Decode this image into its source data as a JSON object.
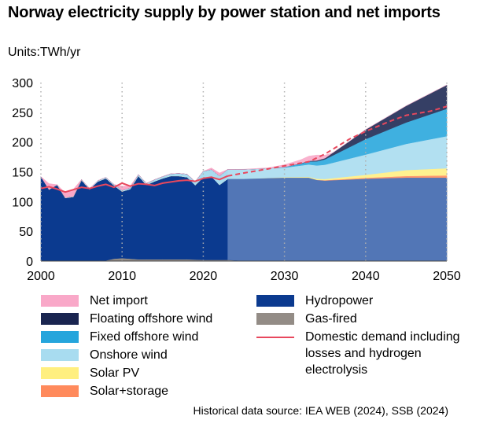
{
  "title": "Norway electricity supply by power station and net imports",
  "units": "Units:TWh/yr",
  "source": "Historical data source: IEA WEB (2024), SSB (2024)",
  "colors": {
    "net_import": "#f9a8c8",
    "floating_offshore_wind": "#1a2550",
    "fixed_offshore_wind": "#25a5dc",
    "onshore_wind": "#a8dcf0",
    "solar_pv": "#ffef80",
    "solar_storage": "#ff8a5c",
    "hydropower": "#0b3a8f",
    "hydropower_forecast": "#3b63ac",
    "gas_fired": "#938c86",
    "demand": "#e8485d",
    "grid": "#b0b0b0"
  },
  "legend": [
    {
      "key": "net_import",
      "label": "Net import"
    },
    {
      "key": "floating_offshore_wind",
      "label": "Floating offshore wind"
    },
    {
      "key": "fixed_offshore_wind",
      "label": "Fixed offshore wind"
    },
    {
      "key": "onshore_wind",
      "label": "Onshore wind"
    },
    {
      "key": "solar_pv",
      "label": "Solar PV"
    },
    {
      "key": "solar_storage",
      "label": "Solar+storage"
    },
    {
      "key": "hydropower",
      "label": "Hydropower"
    },
    {
      "key": "gas_fired",
      "label": "Gas-fired"
    },
    {
      "key": "demand",
      "label": "Domestic demand including losses and hydrogen electrolysis",
      "type": "line"
    }
  ],
  "chart_data": {
    "type": "area",
    "title": "Norway electricity supply by power station and net imports",
    "ylabel": "Units:TWh/yr",
    "xlim": [
      2000,
      2050
    ],
    "ylim": [
      0,
      300
    ],
    "x_ticks": [
      2000,
      2010,
      2020,
      2030,
      2040,
      2050
    ],
    "y_ticks": [
      0,
      50,
      100,
      150,
      200,
      250,
      300
    ],
    "grid": "vertical dotted at 2010, 2020, 2030, 2040",
    "forecast_start": 2023,
    "stacked": true,
    "series": [
      {
        "name": "Gas-fired",
        "key": "gas_fired",
        "points": [
          [
            2000,
            0
          ],
          [
            2005,
            0
          ],
          [
            2008,
            1
          ],
          [
            2009,
            4
          ],
          [
            2010,
            5
          ],
          [
            2011,
            4
          ],
          [
            2012,
            3
          ],
          [
            2015,
            3
          ],
          [
            2018,
            3
          ],
          [
            2020,
            2
          ],
          [
            2023,
            2
          ],
          [
            2024,
            1
          ],
          [
            2025,
            0
          ],
          [
            2050,
            0
          ]
        ]
      },
      {
        "name": "Hydropower",
        "key": "hydropower",
        "points": [
          [
            2000,
            142
          ],
          [
            2001,
            120
          ],
          [
            2002,
            128
          ],
          [
            2003,
            106
          ],
          [
            2004,
            108
          ],
          [
            2005,
            136
          ],
          [
            2006,
            120
          ],
          [
            2007,
            133
          ],
          [
            2008,
            138
          ],
          [
            2009,
            123
          ],
          [
            2010,
            112
          ],
          [
            2011,
            117
          ],
          [
            2012,
            140
          ],
          [
            2013,
            125
          ],
          [
            2014,
            131
          ],
          [
            2015,
            136
          ],
          [
            2016,
            140
          ],
          [
            2017,
            140
          ],
          [
            2018,
            138
          ],
          [
            2019,
            125
          ],
          [
            2020,
            139
          ],
          [
            2021,
            140
          ],
          [
            2022,
            126
          ],
          [
            2023,
            136
          ],
          [
            2025,
            138
          ],
          [
            2030,
            140
          ],
          [
            2033,
            140
          ],
          [
            2034,
            136
          ],
          [
            2035,
            135
          ],
          [
            2040,
            138
          ],
          [
            2045,
            140
          ],
          [
            2050,
            140
          ]
        ]
      },
      {
        "name": "Solar+storage",
        "key": "solar_storage",
        "points": [
          [
            2000,
            0
          ],
          [
            2023,
            0
          ],
          [
            2030,
            0
          ],
          [
            2033,
            0
          ],
          [
            2035,
            1
          ],
          [
            2040,
            2
          ],
          [
            2045,
            3
          ],
          [
            2050,
            4
          ]
        ]
      },
      {
        "name": "Solar PV",
        "key": "solar_pv",
        "points": [
          [
            2000,
            0
          ],
          [
            2023,
            0
          ],
          [
            2025,
            0
          ],
          [
            2030,
            1
          ],
          [
            2035,
            2
          ],
          [
            2040,
            5
          ],
          [
            2045,
            10
          ],
          [
            2050,
            12
          ]
        ]
      },
      {
        "name": "Onshore wind",
        "key": "onshore_wind",
        "points": [
          [
            2000,
            0
          ],
          [
            2005,
            1
          ],
          [
            2010,
            2
          ],
          [
            2015,
            3
          ],
          [
            2018,
            5
          ],
          [
            2019,
            6
          ],
          [
            2020,
            10
          ],
          [
            2021,
            12
          ],
          [
            2022,
            15
          ],
          [
            2023,
            16
          ],
          [
            2025,
            16
          ],
          [
            2030,
            16
          ],
          [
            2035,
            24
          ],
          [
            2040,
            34
          ],
          [
            2045,
            44
          ],
          [
            2050,
            54
          ]
        ]
      },
      {
        "name": "Fixed offshore wind",
        "key": "fixed_offshore_wind",
        "points": [
          [
            2000,
            0
          ],
          [
            2028,
            0
          ],
          [
            2030,
            1
          ],
          [
            2032,
            3
          ],
          [
            2035,
            9
          ],
          [
            2040,
            26
          ],
          [
            2045,
            36
          ],
          [
            2050,
            46
          ]
        ]
      },
      {
        "name": "Floating offshore wind",
        "key": "floating_offshore_wind",
        "points": [
          [
            2000,
            0
          ],
          [
            2030,
            0
          ],
          [
            2033,
            1
          ],
          [
            2035,
            2
          ],
          [
            2038,
            10
          ],
          [
            2040,
            16
          ],
          [
            2045,
            28
          ],
          [
            2050,
            40
          ]
        ]
      },
      {
        "name": "Net import",
        "key": "net_import",
        "points": [
          [
            2000,
            0
          ],
          [
            2001,
            10
          ],
          [
            2002,
            0
          ],
          [
            2003,
            8
          ],
          [
            2004,
            12
          ],
          [
            2005,
            0
          ],
          [
            2006,
            1
          ],
          [
            2007,
            0
          ],
          [
            2009,
            0
          ],
          [
            2010,
            7
          ],
          [
            2011,
            3
          ],
          [
            2012,
            0
          ],
          [
            2020,
            0
          ],
          [
            2022,
            5
          ],
          [
            2023,
            0
          ],
          [
            2028,
            1
          ],
          [
            2030,
            4
          ],
          [
            2032,
            6
          ],
          [
            2033,
            8
          ],
          [
            2034,
            9
          ],
          [
            2035,
            5
          ],
          [
            2036,
            0
          ],
          [
            2050,
            0
          ]
        ]
      }
    ],
    "demand_line": {
      "name": "Domestic demand including losses and hydrogen electrolysis",
      "key": "demand",
      "points": [
        [
          2000,
          122
        ],
        [
          2001,
          125
        ],
        [
          2002,
          121
        ],
        [
          2003,
          116
        ],
        [
          2004,
          120
        ],
        [
          2005,
          124
        ],
        [
          2006,
          122
        ],
        [
          2007,
          126
        ],
        [
          2008,
          129
        ],
        [
          2009,
          124
        ],
        [
          2010,
          131
        ],
        [
          2011,
          126
        ],
        [
          2012,
          130
        ],
        [
          2013,
          129
        ],
        [
          2014,
          127
        ],
        [
          2015,
          131
        ],
        [
          2016,
          133
        ],
        [
          2017,
          135
        ],
        [
          2018,
          136
        ],
        [
          2019,
          134
        ],
        [
          2020,
          139
        ],
        [
          2021,
          141
        ],
        [
          2022,
          137
        ],
        [
          2023,
          143
        ],
        [
          2025,
          148
        ],
        [
          2028,
          155
        ],
        [
          2030,
          160
        ],
        [
          2033,
          167
        ],
        [
          2035,
          180
        ],
        [
          2038,
          205
        ],
        [
          2040,
          218
        ],
        [
          2043,
          235
        ],
        [
          2045,
          245
        ],
        [
          2048,
          252
        ],
        [
          2050,
          260
        ]
      ]
    }
  }
}
